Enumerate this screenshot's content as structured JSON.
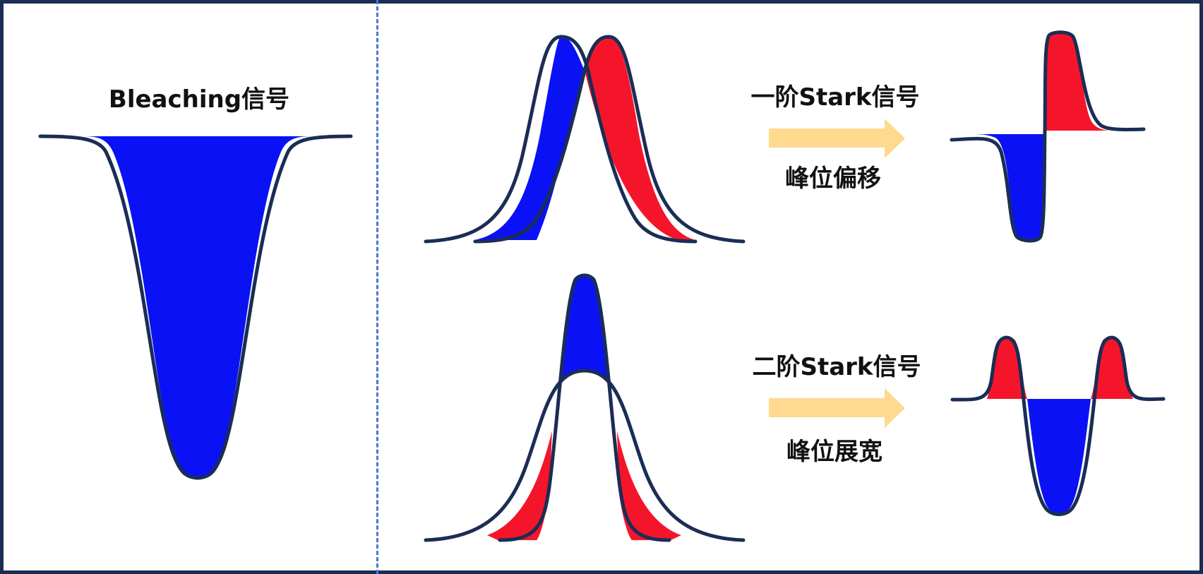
{
  "labels": {
    "bleaching": "Bleaching信号",
    "first_order": "一阶Stark信号",
    "first_order_sub": "峰位偏移",
    "second_order": "二阶Stark信号",
    "second_order_sub": "峰位展宽"
  },
  "colors": {
    "frame": "#1b2d55",
    "divider": "#4a78d0",
    "outline": "#1b2d55",
    "blue_fill": "#0a12f5",
    "red_fill": "#f5152a",
    "arrow": "#fed98e"
  }
}
